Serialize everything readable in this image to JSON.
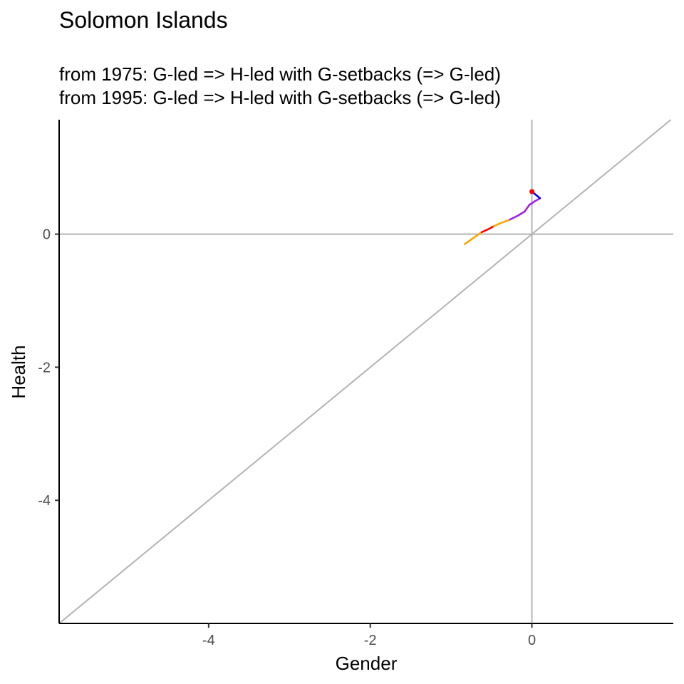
{
  "chart_data": {
    "type": "line",
    "title": "Solomon Islands",
    "subtitle_lines": [
      "from 1975:  G-led => H-led with G-setbacks (=> G-led)",
      "from 1995:  G-led => H-led with G-setbacks (=> G-led)"
    ],
    "xlabel": "Gender",
    "ylabel": "Health",
    "xlim": [
      -5.85,
      1.75
    ],
    "ylim": [
      -5.85,
      1.72
    ],
    "xticks": [
      -4,
      -2,
      0
    ],
    "yticks": [
      -4,
      -2,
      0
    ],
    "reference_lines": [
      "x = 0",
      "y = 0",
      "y = x"
    ],
    "grid": false,
    "legend": "none",
    "colors": {
      "reference": "#b3b3b3",
      "axis": "#000000",
      "orange": "#ffa500",
      "red": "#ff0000",
      "purple": "#a020f0",
      "blue": "#0000ff",
      "end_point": "#ff0000"
    },
    "path_segments": [
      {
        "color": "orange",
        "points": [
          [
            -0.83,
            -0.15
          ],
          [
            -0.74,
            -0.07
          ],
          [
            -0.62,
            0.03
          ]
        ]
      },
      {
        "color": "red",
        "points": [
          [
            -0.62,
            0.03
          ],
          [
            -0.53,
            0.08
          ],
          [
            -0.47,
            0.12
          ]
        ]
      },
      {
        "color": "orange",
        "points": [
          [
            -0.47,
            0.12
          ],
          [
            -0.38,
            0.17
          ],
          [
            -0.27,
            0.22
          ]
        ]
      },
      {
        "color": "purple",
        "points": [
          [
            -0.27,
            0.22
          ],
          [
            -0.17,
            0.28
          ],
          [
            -0.09,
            0.34
          ]
        ]
      },
      {
        "color": "purple",
        "points": [
          [
            -0.09,
            0.34
          ],
          [
            -0.03,
            0.44
          ]
        ]
      },
      {
        "color": "purple",
        "points": [
          [
            -0.03,
            0.44
          ],
          [
            0.03,
            0.49
          ],
          [
            0.1,
            0.54
          ]
        ]
      },
      {
        "color": "blue",
        "points": [
          [
            0.1,
            0.54
          ],
          [
            0.04,
            0.6
          ],
          [
            0.0,
            0.64
          ]
        ]
      }
    ],
    "end_point": [
      0.0,
      0.64
    ]
  }
}
